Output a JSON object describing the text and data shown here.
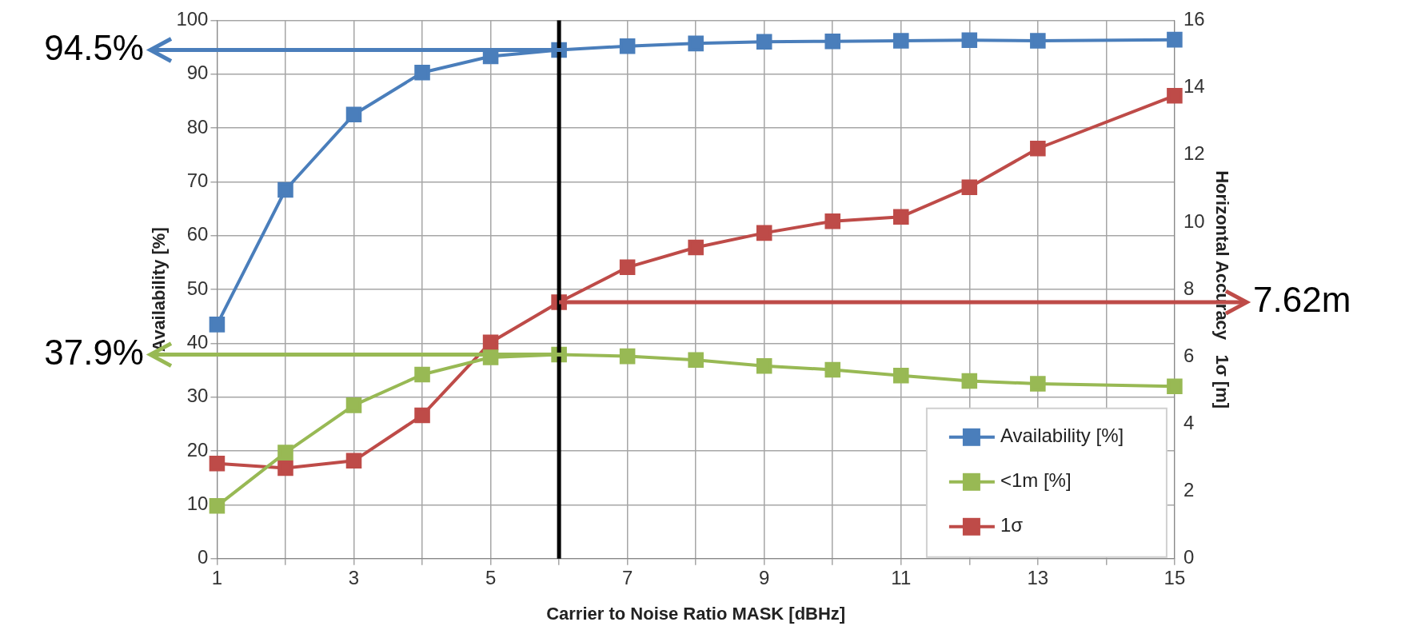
{
  "chart_data": {
    "type": "line",
    "xlabel": "Carrier to Noise Ratio MASK [dBHz]",
    "ylabel": "Availability [%]",
    "y2label": "Horizontal Accuracy   1σ [m]",
    "x": [
      1,
      2,
      3,
      4,
      5,
      6,
      7,
      8,
      9,
      10,
      11,
      12,
      13,
      15
    ],
    "series": [
      {
        "name": "Availability [%]",
        "color": "#4a7ebb",
        "values": [
          43.5,
          68.5,
          82.5,
          90.3,
          93.3,
          94.5,
          95.2,
          95.7,
          96,
          96.1,
          96.2,
          96.3,
          96.2,
          96.4
        ]
      },
      {
        "name": "<1m [%]",
        "color": "#98b954",
        "values": [
          9.8,
          19.7,
          28.5,
          34.2,
          37.4,
          37.9,
          37.6,
          36.9,
          35.8,
          35.1,
          34,
          33,
          32.5,
          32
        ]
      },
      {
        "name": "1σ",
        "color": "#be4b48",
        "axis": "y2",
        "values": [
          2.83,
          2.69,
          2.91,
          4.26,
          6.43,
          7.62,
          8.66,
          9.25,
          9.68,
          10.03,
          10.16,
          11.04,
          12.19,
          13.76
        ]
      }
    ],
    "xlim": [
      1,
      15
    ],
    "xticks": [
      1,
      {
        "value": 2,
        "label": null
      },
      3,
      {
        "value": 4,
        "label": null
      },
      5,
      {
        "value": 6,
        "label": null
      },
      7,
      {
        "value": 8,
        "label": null
      },
      9,
      {
        "value": 10,
        "label": null
      },
      11,
      {
        "value": 12,
        "label": null
      },
      13,
      {
        "value": 14,
        "label": null
      },
      15
    ],
    "ylim": [
      0,
      100
    ],
    "yticks": [
      0,
      10,
      20,
      30,
      40,
      50,
      60,
      70,
      80,
      90,
      100
    ],
    "y2lim": [
      0,
      16
    ],
    "y2ticks": [
      0,
      2,
      4,
      6,
      8,
      10,
      12,
      14,
      16
    ],
    "ref_lines": [
      {
        "axis": "x",
        "value": 6,
        "color": "#000000"
      },
      {
        "axis": "y",
        "value": 94.5,
        "label": "94.5%",
        "color": "#4a7ebb"
      },
      {
        "axis": "y",
        "value": 37.9,
        "label": "37.9%",
        "color": "#98b954"
      },
      {
        "axis": "y2",
        "value": 7.62,
        "label": "7.62m",
        "color": "#be4b48"
      }
    ],
    "grid": true,
    "legend": "bottom right",
    "marker": "square",
    "line_style": "solid"
  }
}
